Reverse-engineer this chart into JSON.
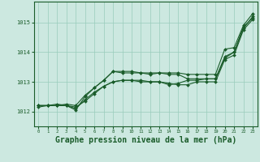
{
  "background_color": "#cce8e0",
  "grid_color": "#99ccbb",
  "line_color": "#1a5c2a",
  "marker_color": "#1a5c2a",
  "xlabel": "Graphe pression niveau de la mer (hPa)",
  "xlabel_fontsize": 7,
  "xlim": [
    -0.5,
    23.5
  ],
  "ylim": [
    1011.5,
    1015.7
  ],
  "yticks": [
    1012,
    1013,
    1014,
    1015
  ],
  "xticks": [
    0,
    1,
    2,
    3,
    4,
    5,
    6,
    7,
    8,
    9,
    10,
    11,
    12,
    13,
    14,
    15,
    16,
    17,
    18,
    19,
    20,
    21,
    22,
    23
  ],
  "series": [
    [
      1012.2,
      1012.2,
      1012.2,
      1012.2,
      1012.05,
      1012.5,
      1012.8,
      1013.05,
      1013.35,
      1013.3,
      1013.3,
      1013.3,
      1013.25,
      1013.3,
      1013.25,
      1013.25,
      1013.1,
      1013.1,
      1013.1,
      1013.1,
      1013.8,
      1014.0,
      1014.8,
      1015.2
    ],
    [
      1012.2,
      1012.2,
      1012.2,
      1012.2,
      1012.1,
      1012.4,
      1012.65,
      1012.85,
      1013.0,
      1013.05,
      1013.05,
      1013.0,
      1013.0,
      1013.0,
      1012.9,
      1012.95,
      1013.05,
      1013.05,
      1013.1,
      1013.1,
      1013.85,
      1014.0,
      1014.85,
      1015.15
    ],
    [
      1012.2,
      1012.2,
      1012.25,
      1012.2,
      1012.15,
      1012.35,
      1012.6,
      1012.85,
      1013.0,
      1013.05,
      1013.05,
      1013.05,
      1013.0,
      1013.0,
      1012.95,
      1012.9,
      1012.9,
      1013.0,
      1013.0,
      1013.0,
      1013.75,
      1013.9,
      1014.75,
      1015.1
    ],
    [
      1012.15,
      1012.2,
      1012.2,
      1012.25,
      1012.2,
      1012.55,
      1012.8,
      1013.05,
      1013.35,
      1013.35,
      1013.35,
      1013.3,
      1013.3,
      1013.3,
      1013.3,
      1013.3,
      1013.25,
      1013.25,
      1013.25,
      1013.25,
      1014.1,
      1014.15,
      1014.9,
      1015.3
    ]
  ]
}
